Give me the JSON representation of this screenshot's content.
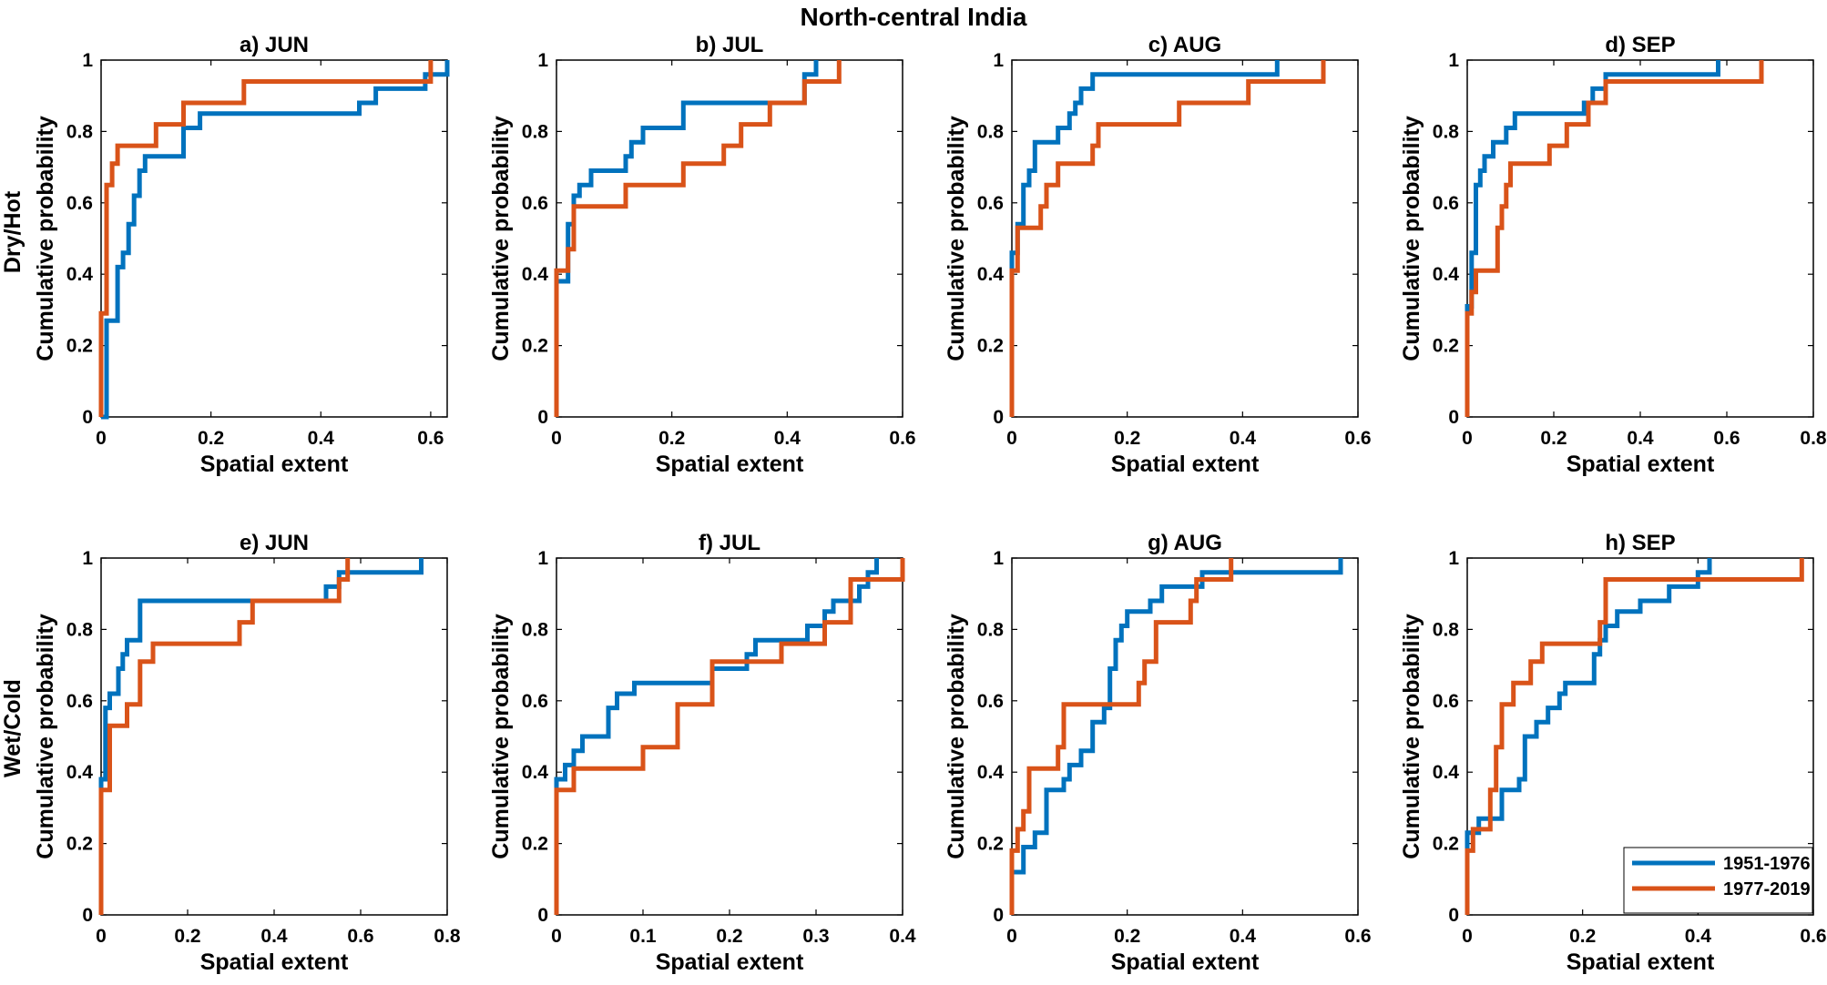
{
  "figure": {
    "suptitle": "North-central India",
    "row_labels": [
      "Dry/Hot",
      "Wet/Cold"
    ],
    "xlabel": "Spatial extent",
    "ylabel": "Cumulative probability",
    "legend": {
      "placement": "bottom-right of panel h",
      "entries": [
        {
          "name": "1951-1976",
          "color": "#0072BD"
        },
        {
          "name": "1977-2019",
          "color": "#D95319"
        }
      ]
    }
  },
  "chart_data": [
    {
      "type": "line",
      "step": true,
      "title": "a) JUN",
      "xlabel": "Spatial extent",
      "ylabel": "Cumulative probability",
      "xlim": [
        0,
        0.63
      ],
      "ylim": [
        0,
        1
      ],
      "xticks": [
        0,
        0.2,
        0.4,
        0.6
      ],
      "xticklabels": [
        "0",
        "0.2",
        "0.4",
        "0.6"
      ],
      "yticks": [
        0,
        0.2,
        0.4,
        0.6,
        0.8,
        1
      ],
      "yticklabels": [
        "0",
        "0.2",
        "0.4",
        "0.6",
        "0.8",
        "1"
      ],
      "series": [
        {
          "name": "1951-1976",
          "color": "#0072BD",
          "x": [
            0,
            0.01,
            0.01,
            0.03,
            0.03,
            0.04,
            0.05,
            0.05,
            0.06,
            0.07,
            0.08,
            0.1,
            0.15,
            0.16,
            0.18,
            0.47,
            0.5,
            0.59,
            0.63
          ],
          "y": [
            0,
            0.27,
            0.27,
            0.38,
            0.42,
            0.46,
            0.46,
            0.54,
            0.62,
            0.69,
            0.73,
            0.73,
            0.81,
            0.81,
            0.85,
            0.88,
            0.92,
            0.96,
            1.0
          ]
        },
        {
          "name": "1977-2019",
          "color": "#D95319",
          "x": [
            0,
            0,
            0.01,
            0.02,
            0.03,
            0.1,
            0.15,
            0.26,
            0.6,
            0.6
          ],
          "y": [
            0,
            0.29,
            0.65,
            0.71,
            0.76,
            0.82,
            0.88,
            0.94,
            0.94,
            1.0
          ]
        }
      ]
    },
    {
      "type": "line",
      "step": true,
      "title": "b) JUL",
      "xlabel": "Spatial extent",
      "ylabel": "Cumulative probability",
      "xlim": [
        0,
        0.6
      ],
      "ylim": [
        0,
        1
      ],
      "xticks": [
        0,
        0.2,
        0.4,
        0.6
      ],
      "xticklabels": [
        "0",
        "0.2",
        "0.4",
        "0.6"
      ],
      "yticks": [
        0,
        0.2,
        0.4,
        0.6,
        0.8,
        1
      ],
      "yticklabels": [
        "0",
        "0.2",
        "0.4",
        "0.6",
        "0.8",
        "1"
      ],
      "series": [
        {
          "name": "1951-1976",
          "color": "#0072BD",
          "x": [
            0,
            0,
            0.02,
            0.02,
            0.03,
            0.04,
            0.05,
            0.06,
            0.12,
            0.13,
            0.14,
            0.15,
            0.22,
            0.43,
            0.44,
            0.45
          ],
          "y": [
            0,
            0.38,
            0.38,
            0.54,
            0.62,
            0.65,
            0.65,
            0.69,
            0.73,
            0.77,
            0.77,
            0.81,
            0.88,
            0.96,
            0.96,
            1.0
          ]
        },
        {
          "name": "1977-2019",
          "color": "#D95319",
          "x": [
            0,
            0,
            0.02,
            0.03,
            0.12,
            0.22,
            0.29,
            0.32,
            0.37,
            0.42,
            0.43,
            0.49
          ],
          "y": [
            0,
            0.41,
            0.47,
            0.59,
            0.65,
            0.71,
            0.76,
            0.82,
            0.88,
            0.88,
            0.94,
            1.0
          ]
        }
      ]
    },
    {
      "type": "line",
      "step": true,
      "title": "c) AUG",
      "xlabel": "Spatial extent",
      "ylabel": "Cumulative probability",
      "xlim": [
        0,
        0.6
      ],
      "ylim": [
        0,
        1
      ],
      "xticks": [
        0,
        0.2,
        0.4,
        0.6
      ],
      "xticklabels": [
        "0",
        "0.2",
        "0.4",
        "0.6"
      ],
      "yticks": [
        0,
        0.2,
        0.4,
        0.6,
        0.8,
        1
      ],
      "yticklabels": [
        "0",
        "0.2",
        "0.4",
        "0.6",
        "0.8",
        "1"
      ],
      "series": [
        {
          "name": "1951-1976",
          "color": "#0072BD",
          "x": [
            0,
            0,
            0.01,
            0.02,
            0.03,
            0.04,
            0.08,
            0.1,
            0.11,
            0.12,
            0.14,
            0.46,
            0.46
          ],
          "y": [
            0,
            0.46,
            0.54,
            0.65,
            0.69,
            0.77,
            0.81,
            0.85,
            0.88,
            0.92,
            0.96,
            0.96,
            1.0
          ]
        },
        {
          "name": "1977-2019",
          "color": "#D95319",
          "x": [
            0,
            0,
            0.01,
            0.02,
            0.05,
            0.06,
            0.08,
            0.14,
            0.15,
            0.29,
            0.41,
            0.54,
            0.54
          ],
          "y": [
            0,
            0.41,
            0.53,
            0.53,
            0.59,
            0.65,
            0.71,
            0.76,
            0.82,
            0.88,
            0.94,
            0.94,
            1.0
          ]
        }
      ]
    },
    {
      "type": "line",
      "step": true,
      "title": "d) SEP",
      "xlabel": "Spatial extent",
      "ylabel": "Cumulative probability",
      "xlim": [
        0,
        0.8
      ],
      "ylim": [
        0,
        1
      ],
      "xticks": [
        0,
        0.2,
        0.4,
        0.6,
        0.8
      ],
      "xticklabels": [
        "0",
        "0.2",
        "0.4",
        "0.6",
        "0.8"
      ],
      "yticks": [
        0,
        0.2,
        0.4,
        0.6,
        0.8,
        1
      ],
      "yticklabels": [
        "0",
        "0.2",
        "0.4",
        "0.6",
        "0.8",
        "1"
      ],
      "series": [
        {
          "name": "1951-1976",
          "color": "#0072BD",
          "x": [
            0,
            0,
            0.01,
            0.02,
            0.03,
            0.04,
            0.06,
            0.09,
            0.11,
            0.27,
            0.29,
            0.31,
            0.32,
            0.58,
            0.58
          ],
          "y": [
            0,
            0.31,
            0.46,
            0.65,
            0.69,
            0.73,
            0.77,
            0.81,
            0.85,
            0.88,
            0.92,
            0.92,
            0.96,
            0.96,
            1.0
          ]
        },
        {
          "name": "1977-2019",
          "color": "#D95319",
          "x": [
            0,
            0,
            0.01,
            0.02,
            0.07,
            0.08,
            0.09,
            0.1,
            0.19,
            0.23,
            0.28,
            0.32,
            0.68,
            0.68
          ],
          "y": [
            0,
            0.29,
            0.35,
            0.41,
            0.53,
            0.59,
            0.65,
            0.71,
            0.76,
            0.82,
            0.88,
            0.94,
            0.94,
            1.0
          ]
        }
      ]
    },
    {
      "type": "line",
      "step": true,
      "title": "e) JUN",
      "xlabel": "Spatial extent",
      "ylabel": "Cumulative probability",
      "xlim": [
        0,
        0.8
      ],
      "ylim": [
        0,
        1
      ],
      "xticks": [
        0,
        0.2,
        0.4,
        0.6,
        0.8
      ],
      "xticklabels": [
        "0",
        "0.2",
        "0.4",
        "0.6",
        "0.8"
      ],
      "yticks": [
        0,
        0.2,
        0.4,
        0.6,
        0.8,
        1
      ],
      "yticklabels": [
        "0",
        "0.2",
        "0.4",
        "0.6",
        "0.8",
        "1"
      ],
      "series": [
        {
          "name": "1951-1976",
          "color": "#0072BD",
          "x": [
            0,
            0,
            0.01,
            0.02,
            0.04,
            0.05,
            0.06,
            0.09,
            0.52,
            0.55,
            0.56,
            0.74,
            0.74
          ],
          "y": [
            0,
            0.38,
            0.58,
            0.62,
            0.69,
            0.73,
            0.77,
            0.88,
            0.92,
            0.96,
            0.96,
            0.96,
            1.0
          ]
        },
        {
          "name": "1977-2019",
          "color": "#D95319",
          "x": [
            0,
            0,
            0.02,
            0.06,
            0.08,
            0.09,
            0.12,
            0.32,
            0.35,
            0.55,
            0.56,
            0.57
          ],
          "y": [
            0,
            0.35,
            0.53,
            0.59,
            0.59,
            0.71,
            0.76,
            0.82,
            0.88,
            0.94,
            0.94,
            1.0
          ]
        }
      ]
    },
    {
      "type": "line",
      "step": true,
      "title": "f) JUL",
      "xlabel": "Spatial extent",
      "ylabel": "Cumulative probability",
      "xlim": [
        0,
        0.4
      ],
      "ylim": [
        0,
        1
      ],
      "xticks": [
        0,
        0.1,
        0.2,
        0.3,
        0.4
      ],
      "xticklabels": [
        "0",
        "0.1",
        "0.2",
        "0.3",
        "0.4"
      ],
      "yticks": [
        0,
        0.2,
        0.4,
        0.6,
        0.8,
        1
      ],
      "yticklabels": [
        "0",
        "0.2",
        "0.4",
        "0.6",
        "0.8",
        "1"
      ],
      "series": [
        {
          "name": "1951-1976",
          "color": "#0072BD",
          "x": [
            0,
            0,
            0.01,
            0.02,
            0.03,
            0.06,
            0.07,
            0.09,
            0.18,
            0.22,
            0.23,
            0.29,
            0.31,
            0.32,
            0.35,
            0.36,
            0.37
          ],
          "y": [
            0,
            0.38,
            0.42,
            0.46,
            0.5,
            0.58,
            0.62,
            0.65,
            0.69,
            0.73,
            0.77,
            0.81,
            0.85,
            0.88,
            0.92,
            0.96,
            1.0
          ]
        },
        {
          "name": "1977-2019",
          "color": "#D95319",
          "x": [
            0,
            0,
            0.02,
            0.1,
            0.14,
            0.18,
            0.26,
            0.31,
            0.34,
            0.4
          ],
          "y": [
            0,
            0.35,
            0.41,
            0.47,
            0.59,
            0.71,
            0.76,
            0.82,
            0.94,
            1.0
          ]
        }
      ]
    },
    {
      "type": "line",
      "step": true,
      "title": "g) AUG",
      "xlabel": "Spatial extent",
      "ylabel": "Cumulative probability",
      "xlim": [
        0,
        0.6
      ],
      "ylim": [
        0,
        1
      ],
      "xticks": [
        0,
        0.2,
        0.4,
        0.6
      ],
      "xticklabels": [
        "0",
        "0.2",
        "0.4",
        "0.6"
      ],
      "yticks": [
        0,
        0.2,
        0.4,
        0.6,
        0.8,
        1
      ],
      "yticklabels": [
        "0",
        "0.2",
        "0.4",
        "0.6",
        "0.8",
        "1"
      ],
      "series": [
        {
          "name": "1951-1976",
          "color": "#0072BD",
          "x": [
            0,
            0,
            0.01,
            0.02,
            0.04,
            0.06,
            0.09,
            0.1,
            0.12,
            0.14,
            0.16,
            0.17,
            0.18,
            0.19,
            0.2,
            0.24,
            0.26,
            0.33,
            0.34,
            0.57,
            0.57
          ],
          "y": [
            0,
            0.12,
            0.12,
            0.19,
            0.23,
            0.35,
            0.38,
            0.42,
            0.46,
            0.54,
            0.58,
            0.69,
            0.77,
            0.81,
            0.85,
            0.88,
            0.92,
            0.96,
            0.96,
            0.96,
            1.0
          ]
        },
        {
          "name": "1977-2019",
          "color": "#D95319",
          "x": [
            0,
            0,
            0.01,
            0.02,
            0.03,
            0.08,
            0.09,
            0.22,
            0.23,
            0.25,
            0.31,
            0.32,
            0.38
          ],
          "y": [
            0,
            0.18,
            0.24,
            0.29,
            0.41,
            0.47,
            0.59,
            0.65,
            0.71,
            0.82,
            0.88,
            0.94,
            1.0
          ]
        }
      ]
    },
    {
      "type": "line",
      "step": true,
      "title": "h) SEP",
      "xlabel": "Spatial extent",
      "ylabel": "Cumulative probability",
      "xlim": [
        0,
        0.6
      ],
      "ylim": [
        0,
        1
      ],
      "xticks": [
        0,
        0.2,
        0.4,
        0.6
      ],
      "xticklabels": [
        "0",
        "0.2",
        "0.4",
        "0.6"
      ],
      "yticks": [
        0,
        0.2,
        0.4,
        0.6,
        0.8,
        1
      ],
      "yticklabels": [
        "0",
        "0.2",
        "0.4",
        "0.6",
        "0.8",
        "1"
      ],
      "series": [
        {
          "name": "1951-1976",
          "color": "#0072BD",
          "x": [
            0,
            0,
            0.02,
            0.06,
            0.09,
            0.1,
            0.12,
            0.14,
            0.16,
            0.17,
            0.19,
            0.22,
            0.23,
            0.24,
            0.26,
            0.3,
            0.35,
            0.4,
            0.41,
            0.42
          ],
          "y": [
            0,
            0.23,
            0.27,
            0.35,
            0.38,
            0.5,
            0.54,
            0.58,
            0.62,
            0.65,
            0.65,
            0.73,
            0.77,
            0.81,
            0.85,
            0.88,
            0.92,
            0.96,
            0.96,
            1.0
          ]
        },
        {
          "name": "1977-2019",
          "color": "#D95319",
          "x": [
            0,
            0,
            0.01,
            0.04,
            0.05,
            0.06,
            0.08,
            0.11,
            0.13,
            0.23,
            0.24,
            0.58,
            0.58
          ],
          "y": [
            0,
            0.18,
            0.24,
            0.35,
            0.47,
            0.59,
            0.65,
            0.71,
            0.76,
            0.82,
            0.94,
            0.94,
            1.0
          ]
        }
      ]
    }
  ]
}
